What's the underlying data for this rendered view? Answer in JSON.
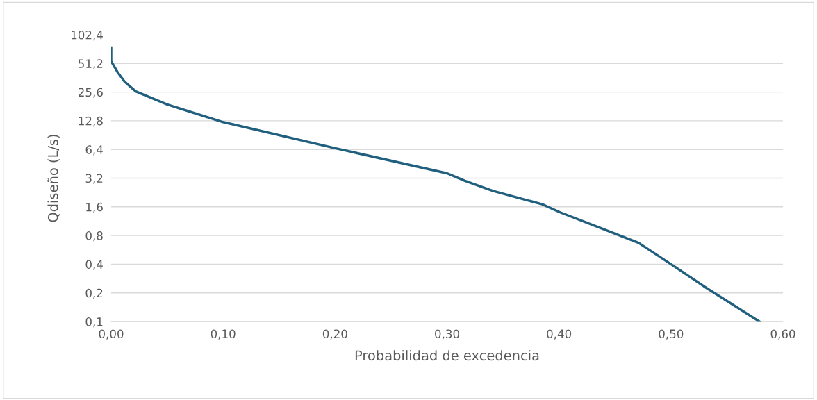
{
  "chart_data": {
    "type": "line",
    "xlabel": "Probabilidad de excedencia",
    "ylabel": "Qdiseño (L/s)",
    "log": "y",
    "grid": "y",
    "legend": false,
    "marker": "none",
    "line_style": "solid",
    "xlim": [
      0,
      0.6
    ],
    "xticks": [
      {
        "value": 0,
        "label": "0,00"
      },
      {
        "value": 0.1,
        "label": "0,10"
      },
      {
        "value": 0.2,
        "label": "0,20"
      },
      {
        "value": 0.3,
        "label": "0,30"
      },
      {
        "value": 0.4,
        "label": "0,40"
      },
      {
        "value": 0.5,
        "label": "0,50"
      },
      {
        "value": 0.6,
        "label": "0,60"
      }
    ],
    "ylim": [
      0.1,
      102.4
    ],
    "yticks": [
      {
        "value": 0.1,
        "label": "0,1"
      },
      {
        "value": 0.2,
        "label": "0,2"
      },
      {
        "value": 0.4,
        "label": "0,4"
      },
      {
        "value": 0.8,
        "label": "0,8"
      },
      {
        "value": 1.6,
        "label": "1,6"
      },
      {
        "value": 3.2,
        "label": "3,2"
      },
      {
        "value": 6.4,
        "label": "6,4"
      },
      {
        "value": 12.8,
        "label": "12,8"
      },
      {
        "value": 25.6,
        "label": "25,6"
      },
      {
        "value": 51.2,
        "label": "51,2"
      },
      {
        "value": 102.4,
        "label": "102,4"
      }
    ],
    "x": [
      0,
      0,
      0.006,
      0.012,
      0.022,
      0.05,
      0.1,
      0.2,
      0.3,
      0.316,
      0.341,
      0.385,
      0.401,
      0.44,
      0.471,
      0.5,
      0.533,
      0.579
    ],
    "series": [
      {
        "color": "#215f7e",
        "values": [
          75,
          54,
          41,
          33,
          26,
          19,
          12.4,
          6.6,
          3.6,
          3.0,
          2.35,
          1.7,
          1.4,
          0.93,
          0.67,
          0.4,
          0.22,
          0.1
        ]
      }
    ]
  }
}
